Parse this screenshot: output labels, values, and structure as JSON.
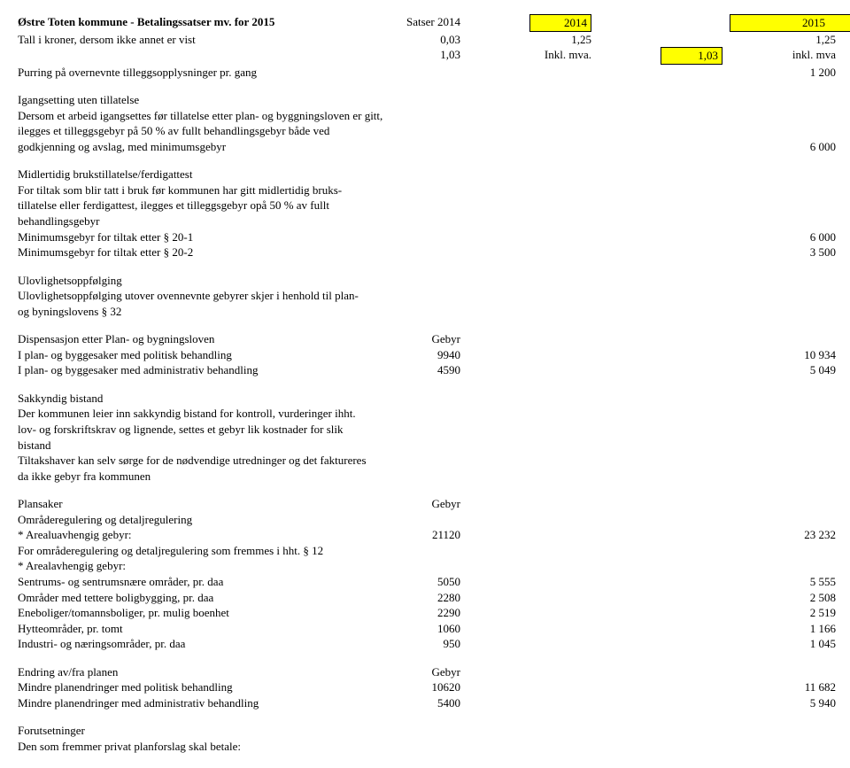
{
  "header": {
    "title": "Østre Toten kommune - Betalingssatser mv. for 2015",
    "col_satser": "Satser 2014",
    "col_2014": "2014",
    "col_2015": "2015",
    "row1_label": "Tall i kroner, dersom ikke annet er vist",
    "row1_a": "0,03",
    "row1_b": "1,25",
    "row1_c": "1,25",
    "row2_a": "1,03",
    "row2_b": "Inkl. mva.",
    "row2_c_box": "1,03",
    "row2_d": "inkl. mva",
    "purring_label": "Purring på overnevnte tilleggsopplysninger pr. gang",
    "purring_val": "1 200"
  },
  "s1": {
    "h": "Igangsetting uten tillatelse",
    "l1": "Dersom et arbeid igangsettes før tillatelse etter plan- og byggningsloven er gitt,",
    "l2": "ilegges et tilleggsgebyr på 50 % av fullt behandlingsgebyr både ved",
    "l3": "godkjenning og avslag, med minimumsgebyr",
    "v": "6 000"
  },
  "s2": {
    "h": "Midlertidig brukstillatelse/ferdigattest",
    "l1": "For tiltak som blir tatt i bruk før kommunen har gitt midlertidig bruks-",
    "l2": "tillatelse eller ferdigattest, ilegges et tilleggsgebyr opå 50 % av fullt",
    "l3": "behandlingsgebyr",
    "r1": "Minimumsgebyr for tiltak etter § 20-1",
    "r1v": "6 000",
    "r2": "Minimumsgebyr for tiltak etter § 20-2",
    "r2v": "3 500"
  },
  "s3": {
    "h": "Ulovlighetsoppfølging",
    "l1": "Ulovlighetsoppfølging utover ovennevnte gebyrer skjer i henhold til plan-",
    "l2": "og byningslovens § 32"
  },
  "s4": {
    "h": "Dispensasjon etter Plan- og bygningsloven",
    "g": "Gebyr",
    "r1": "I plan- og byggesaker med politisk behandling",
    "r1a": "9940",
    "r1d": "10 934",
    "r2": "I plan- og byggesaker med administrativ behandling",
    "r2a": "4590",
    "r2d": "5 049"
  },
  "s5": {
    "h": "Sakkyndig bistand",
    "l1": "Der kommunen leier inn sakkyndig bistand for kontroll, vurderinger ihht.",
    "l2": "lov- og forskriftskrav og lignende, settes et gebyr lik kostnader for slik",
    "l3": "bistand",
    "l4": "Tiltakshaver kan selv sørge for de nødvendige utredninger og det faktureres",
    "l5": "da ikke gebyr fra kommunen"
  },
  "s6": {
    "h": "Plansaker",
    "g": "Gebyr",
    "sub1": "Områderegulering og detaljregulering",
    "r1": "* Arealuavhengig gebyr:",
    "r1a": "21120",
    "r1d": "23 232",
    "l1": "For områderegulering og detaljregulering som fremmes i hht. § 12",
    "sub2": "* Arealavhengig gebyr:",
    "r2": "Sentrums- og sentrumsnære områder, pr. daa",
    "r2a": "5050",
    "r2d": "5 555",
    "r3": "Områder med tettere boligbygging, pr. daa",
    "r3a": "2280",
    "r3d": "2 508",
    "r4": "Eneboliger/tomannsboliger, pr. mulig boenhet",
    "r4a": "2290",
    "r4d": "2 519",
    "r5": "Hytteområder, pr. tomt",
    "r5a": "1060",
    "r5d": "1 166",
    "r6": "Industri- og næringsområder, pr. daa",
    "r6a": "950",
    "r6d": "1 045"
  },
  "s7": {
    "h": "Endring av/fra planen",
    "g": "Gebyr",
    "r1": "Mindre planendringer med politisk behandling",
    "r1a": "10620",
    "r1d": "11 682",
    "r2": "Mindre planendringer med  administrativ behandling",
    "r2a": "5400",
    "r2d": "5 940"
  },
  "s8": {
    "h": "Forutsetninger",
    "l1": "Den som fremmer privat planforslag skal betale:"
  }
}
